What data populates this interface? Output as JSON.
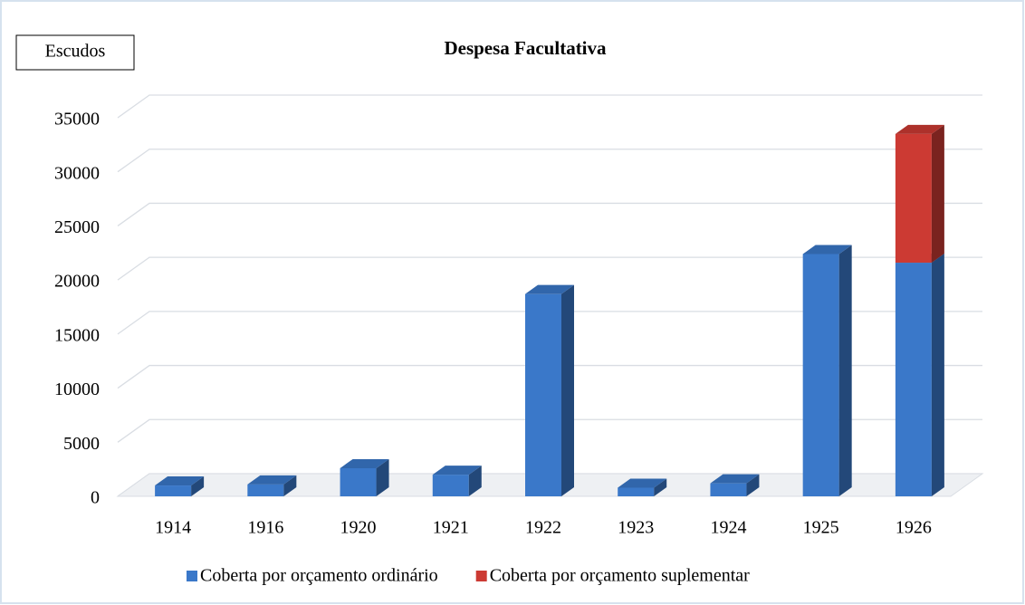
{
  "chart_data": {
    "type": "bar",
    "stacked": true,
    "title": "Despesa Facultativa",
    "y_label": "Escudos",
    "categories": [
      "1914",
      "1916",
      "1920",
      "1921",
      "1922",
      "1923",
      "1924",
      "1925",
      "1926"
    ],
    "series": [
      {
        "name": "Coberta por orçamento ordinário",
        "color": "#3a78c9",
        "values": [
          1000,
          1100,
          2600,
          2000,
          18700,
          800,
          1200,
          22400,
          21600
        ]
      },
      {
        "name": "Coberta por orçamento suplementar",
        "color": "#cc3a33",
        "values": [
          0,
          0,
          0,
          0,
          0,
          0,
          0,
          0,
          11900
        ]
      }
    ],
    "ylim": [
      0,
      35000
    ],
    "yticks": [
      0,
      5000,
      10000,
      15000,
      20000,
      25000,
      30000,
      35000
    ],
    "grid": true,
    "legend": "bottom"
  }
}
